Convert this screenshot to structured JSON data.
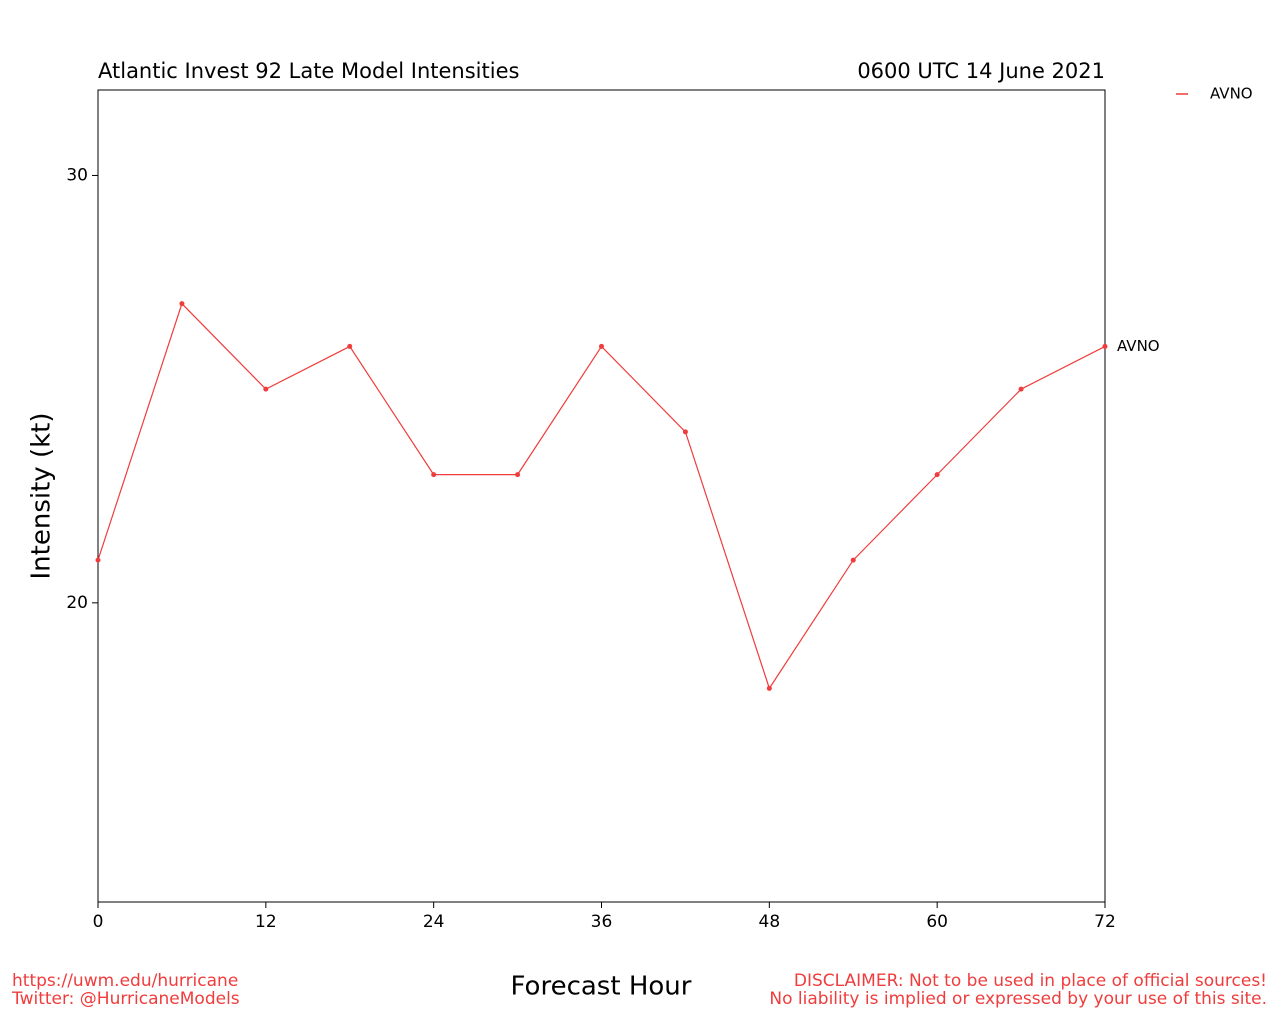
{
  "chart_data": {
    "type": "line",
    "title": "Atlantic Invest 92 Late Model Intensities",
    "subtitle": "0600 UTC 14 June 2021",
    "x_label": "Forecast Hour",
    "y_label": "Intensity (kt)",
    "x": [
      0,
      6,
      12,
      18,
      24,
      30,
      36,
      42,
      48,
      54,
      60,
      66,
      72
    ],
    "series": [
      {
        "name": "AVNO",
        "color": "#f03c3c",
        "values": [
          21,
          27,
          25,
          26,
          23,
          23,
          26,
          24,
          18,
          21,
          23,
          25,
          26
        ]
      }
    ],
    "xlim": [
      0,
      72
    ],
    "xticks": [
      0,
      12,
      24,
      36,
      48,
      60,
      72
    ],
    "ylim": [
      13,
      32
    ],
    "yticks": [
      20,
      30
    ],
    "legend": "top-right",
    "footer_left": [
      "https://uwm.edu/hurricane",
      "Twitter: @HurricaneModels"
    ],
    "footer_right": [
      "DISCLAIMER: Not to be used in place of official sources!",
      "No liability is implied or expressed by your use of this site."
    ]
  }
}
